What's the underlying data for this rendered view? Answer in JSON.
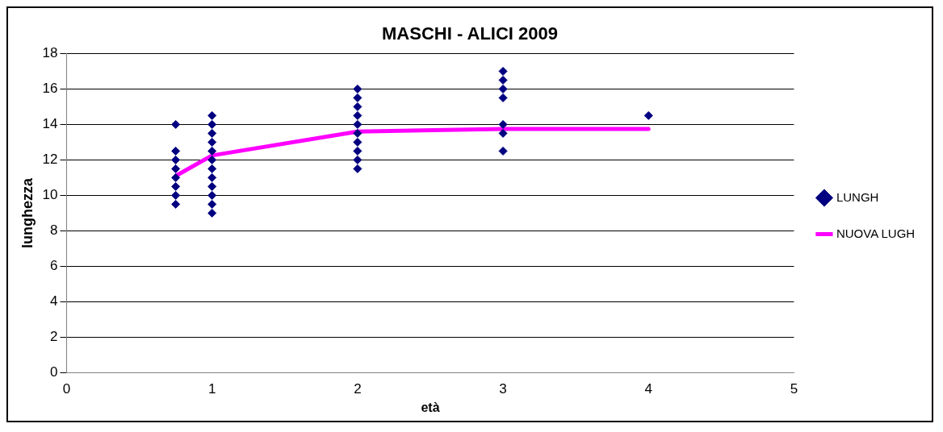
{
  "chart_data": {
    "type": "scatter",
    "title": "MASCHI - ALICI 2009",
    "xlabel": "età",
    "ylabel": "lunghezza",
    "xlim": [
      0,
      5
    ],
    "xticks": [
      0,
      1,
      2,
      3,
      4,
      5
    ],
    "ylim": [
      0,
      18
    ],
    "yticks": [
      0,
      2,
      4,
      6,
      8,
      10,
      12,
      14,
      16,
      18
    ],
    "grid": "y",
    "legend": "right",
    "series": [
      {
        "name": "LUNGH",
        "type": "scatter",
        "color": "#000080",
        "marker": "diamond",
        "x": [
          0.75,
          0.75,
          0.75,
          0.75,
          0.75,
          0.75,
          0.75,
          0.75,
          1,
          1,
          1,
          1,
          1,
          1,
          1,
          1,
          1,
          1,
          1,
          1,
          2,
          2,
          2,
          2,
          2,
          2,
          2,
          2,
          2,
          2,
          3,
          3,
          3,
          3,
          3,
          3,
          3,
          4
        ],
        "values": [
          14,
          12.5,
          12,
          11.5,
          11,
          10.5,
          10,
          9.5,
          14.5,
          14,
          13.5,
          13,
          12.5,
          12,
          11.5,
          11,
          10.5,
          10,
          9.5,
          9,
          16,
          15.5,
          15,
          14.5,
          14,
          13.5,
          13,
          12.5,
          12,
          11.5,
          17,
          16.5,
          16,
          15.5,
          14,
          13.5,
          12.5,
          14.5
        ]
      },
      {
        "name": "NUOVA LUGH",
        "type": "line",
        "color": "#ff00ff",
        "marker": "none",
        "x": [
          0.75,
          1,
          2,
          3,
          4
        ],
        "values": [
          11.1,
          12.25,
          13.6,
          13.75,
          13.75
        ]
      }
    ]
  }
}
